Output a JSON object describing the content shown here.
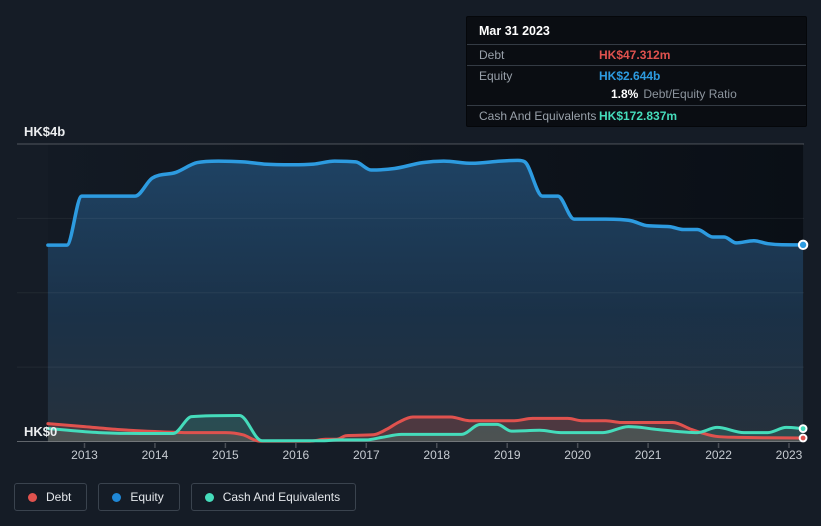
{
  "y_axis": {
    "top": "HK$4b",
    "zero": "HK$0"
  },
  "x_axis": {
    "years": [
      "2013",
      "2014",
      "2015",
      "2016",
      "2017",
      "2018",
      "2019",
      "2020",
      "2021",
      "2022",
      "2023"
    ]
  },
  "tooltip": {
    "date": "Mar 31 2023",
    "debt": {
      "label": "Debt",
      "value": "HK$47.312m",
      "color": "#e0524e"
    },
    "equity": {
      "label": "Equity",
      "value": "HK$2.644b",
      "color": "#2d9be0"
    },
    "ratio": {
      "value": "1.8%",
      "label": "Debt/Equity Ratio"
    },
    "cash": {
      "label": "Cash And Equivalents",
      "value": "HK$172.837m",
      "color": "#45dcbb"
    }
  },
  "legend": {
    "items": [
      {
        "label": "Debt",
        "color": "#e0524e"
      },
      {
        "label": "Equity",
        "color": "#1f87d6"
      },
      {
        "label": "Cash And Equivalents",
        "color": "#45dcbb"
      }
    ]
  },
  "chart_data": {
    "type": "area",
    "title": "Debt, Equity and Cash history",
    "x_unit": "year",
    "y_unit": "HK$ billions",
    "x_range": [
      2012.48,
      2023.2
    ],
    "ylim": [
      0,
      4
    ],
    "y_gridlines": [
      0,
      1,
      2,
      3,
      4
    ],
    "x_ticks": [
      2013,
      2014,
      2015,
      2016,
      2017,
      2018,
      2019,
      2020,
      2021,
      2022,
      2023
    ],
    "legend_position": "bottom-left",
    "grid": true,
    "last_point_date": "Mar 31 2023",
    "style": {
      "page_bg": "#151c26",
      "plot_bg_left": "#131a24",
      "plot_bg_right": "#0a0f16",
      "equity_fill_top": "#1f4466",
      "equity_fill_mid": "#1b3249",
      "equity_fill_bottom": "#27323d"
    },
    "series": [
      {
        "name": "Equity",
        "color": "#2d9be0",
        "line_width": 3.5,
        "fill": "gradient",
        "last_value_label": "HK$2.644b",
        "points": [
          [
            2012.48,
            2.64
          ],
          [
            2012.75,
            2.64
          ],
          [
            2012.96,
            3.3
          ],
          [
            2013.72,
            3.3
          ],
          [
            2013.96,
            3.54
          ],
          [
            2014.3,
            3.62
          ],
          [
            2014.6,
            3.75
          ],
          [
            2014.9,
            3.77
          ],
          [
            2015.25,
            3.76
          ],
          [
            2015.55,
            3.73
          ],
          [
            2015.95,
            3.72
          ],
          [
            2016.25,
            3.73
          ],
          [
            2016.55,
            3.77
          ],
          [
            2016.85,
            3.76
          ],
          [
            2017.07,
            3.65
          ],
          [
            2017.4,
            3.67
          ],
          [
            2017.8,
            3.75
          ],
          [
            2018.1,
            3.77
          ],
          [
            2018.5,
            3.74
          ],
          [
            2018.9,
            3.77
          ],
          [
            2019.15,
            3.78
          ],
          [
            2019.25,
            3.76
          ],
          [
            2019.5,
            3.3
          ],
          [
            2019.72,
            3.3
          ],
          [
            2019.95,
            2.99
          ],
          [
            2020.4,
            2.99
          ],
          [
            2020.75,
            2.97
          ],
          [
            2021.0,
            2.9
          ],
          [
            2021.3,
            2.89
          ],
          [
            2021.5,
            2.85
          ],
          [
            2021.7,
            2.85
          ],
          [
            2021.92,
            2.75
          ],
          [
            2022.08,
            2.75
          ],
          [
            2022.25,
            2.67
          ],
          [
            2022.5,
            2.7
          ],
          [
            2022.7,
            2.66
          ],
          [
            2022.9,
            2.645
          ],
          [
            2023.2,
            2.644
          ]
        ]
      },
      {
        "name": "Debt",
        "color": "#e0524e",
        "line_width": 3,
        "fill": "rgba(224,82,78,0.22)",
        "last_value_label": "HK$47.312m",
        "points": [
          [
            2012.48,
            0.24
          ],
          [
            2013.0,
            0.2
          ],
          [
            2013.5,
            0.16
          ],
          [
            2014.0,
            0.135
          ],
          [
            2014.5,
            0.12
          ],
          [
            2015.0,
            0.12
          ],
          [
            2015.25,
            0.09
          ],
          [
            2015.48,
            0.005
          ],
          [
            2016.2,
            0.005
          ],
          [
            2016.42,
            0.03
          ],
          [
            2016.58,
            0.03
          ],
          [
            2016.72,
            0.08
          ],
          [
            2017.1,
            0.09
          ],
          [
            2017.3,
            0.17
          ],
          [
            2017.46,
            0.26
          ],
          [
            2017.66,
            0.33
          ],
          [
            2018.2,
            0.33
          ],
          [
            2018.46,
            0.28
          ],
          [
            2019.1,
            0.28
          ],
          [
            2019.36,
            0.31
          ],
          [
            2019.86,
            0.31
          ],
          [
            2020.06,
            0.28
          ],
          [
            2020.4,
            0.28
          ],
          [
            2020.62,
            0.255
          ],
          [
            2021.35,
            0.255
          ],
          [
            2021.62,
            0.16
          ],
          [
            2021.96,
            0.07
          ],
          [
            2022.3,
            0.055
          ],
          [
            2022.7,
            0.05
          ],
          [
            2023.2,
            0.047
          ]
        ]
      },
      {
        "name": "Cash And Equivalents",
        "color": "#45dcbb",
        "line_width": 3,
        "fill": "rgba(69,220,187,0.16)",
        "last_value_label": "HK$172.837m",
        "points": [
          [
            2012.48,
            0.175
          ],
          [
            2013.2,
            0.12
          ],
          [
            2013.8,
            0.107
          ],
          [
            2014.26,
            0.107
          ],
          [
            2014.52,
            0.335
          ],
          [
            2015.2,
            0.35
          ],
          [
            2015.52,
            0.01
          ],
          [
            2016.35,
            0.01
          ],
          [
            2016.62,
            0.022
          ],
          [
            2017.0,
            0.022
          ],
          [
            2017.22,
            0.055
          ],
          [
            2017.5,
            0.095
          ],
          [
            2018.35,
            0.095
          ],
          [
            2018.62,
            0.23
          ],
          [
            2018.86,
            0.23
          ],
          [
            2019.06,
            0.14
          ],
          [
            2019.46,
            0.15
          ],
          [
            2019.76,
            0.12
          ],
          [
            2020.36,
            0.12
          ],
          [
            2020.72,
            0.2
          ],
          [
            2021.15,
            0.16
          ],
          [
            2021.7,
            0.12
          ],
          [
            2021.98,
            0.19
          ],
          [
            2022.36,
            0.12
          ],
          [
            2022.7,
            0.12
          ],
          [
            2022.96,
            0.19
          ],
          [
            2023.2,
            0.173
          ]
        ]
      }
    ]
  }
}
